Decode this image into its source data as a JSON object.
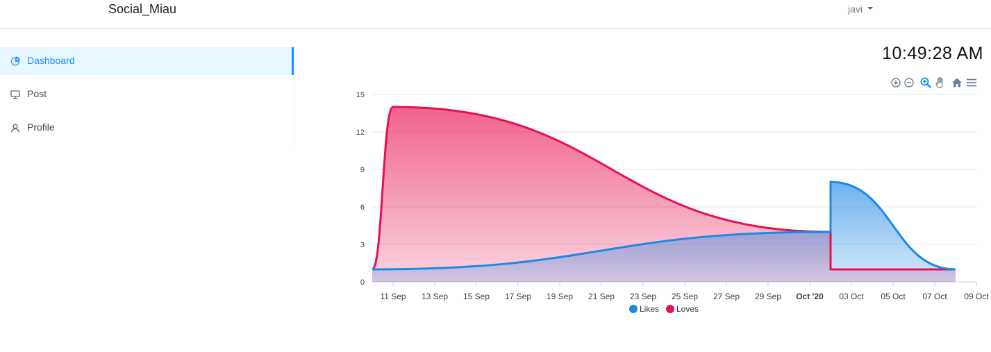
{
  "app": {
    "brand": "Social_Miau"
  },
  "user": {
    "name": "javi"
  },
  "sidebar": {
    "items": [
      {
        "label": "Dashboard",
        "icon": "pie-chart-icon",
        "active": true
      },
      {
        "label": "Post",
        "icon": "desktop-icon",
        "active": false
      },
      {
        "label": "Profile",
        "icon": "user-icon",
        "active": false
      }
    ]
  },
  "clock": {
    "time": "10:49:28 AM"
  },
  "toolbar": {
    "icons": [
      "zoom-in-icon",
      "zoom-out-icon",
      "selection-zoom-icon",
      "pan-icon",
      "home-icon",
      "menu-icon"
    ]
  },
  "colors": {
    "likes": "#1e88e5",
    "loves": "#e8104f",
    "accent": "#1890ff"
  },
  "chart_data": {
    "type": "area",
    "ylim": [
      0,
      15
    ],
    "yticks": [
      0,
      3,
      6,
      9,
      12,
      15
    ],
    "grid": true,
    "legend_position": "bottom",
    "x_tick_labels": [
      "11 Sep",
      "13 Sep",
      "15 Sep",
      "17 Sep",
      "19 Sep",
      "21 Sep",
      "23 Sep",
      "25 Sep",
      "27 Sep",
      "29 Sep",
      "Oct '20",
      "03 Oct",
      "05 Oct",
      "07 Oct",
      "09 Oct"
    ],
    "x_range": [
      "2020-09-10",
      "2020-10-09"
    ],
    "series": [
      {
        "name": "Likes",
        "color": "#1e88e5",
        "points": [
          [
            "2020-09-10",
            1
          ],
          [
            "2020-10-02",
            4
          ],
          [
            "2020-10-02",
            8
          ],
          [
            "2020-10-08",
            1
          ]
        ]
      },
      {
        "name": "Loves",
        "color": "#e8104f",
        "points": [
          [
            "2020-09-10",
            1
          ],
          [
            "2020-09-11",
            14
          ],
          [
            "2020-10-02",
            4
          ],
          [
            "2020-10-02",
            1
          ],
          [
            "2020-10-08",
            1
          ]
        ]
      }
    ]
  }
}
